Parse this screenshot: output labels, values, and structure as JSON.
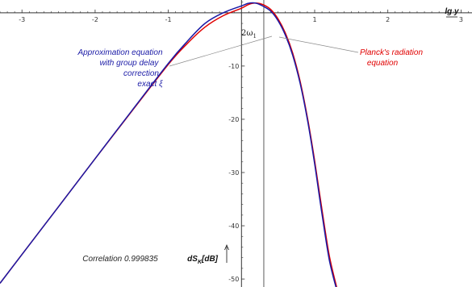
{
  "chart_data": {
    "type": "line",
    "xlabel": "lg y",
    "ylabel": "dS_K[dB]",
    "ylabel_main": "dS",
    "ylabel_sub": "K",
    "ylabel_suffix": "[dB]",
    "xlim": [
      -3.3,
      3.15
    ],
    "ylim": [
      -51.5,
      2.4
    ],
    "xticks": [
      -3,
      -2,
      -1,
      1,
      2,
      3
    ],
    "yticks": [
      -10,
      -20,
      -30,
      -40,
      -50
    ],
    "grid": false,
    "peak_marker": {
      "label_main": "2ω",
      "label_sub": "1",
      "x": 0.305
    },
    "annotations": [
      {
        "lines": [
          "Approximation equation",
          "with group delay",
          "correction",
          "exact ξ"
        ],
        "color": "#1a1aa6"
      },
      {
        "lines": [
          "Planck's radiation",
          "equation"
        ],
        "color": "#e00000"
      }
    ],
    "correlation_text": "Correlation 0.999835",
    "series": [
      {
        "color": "#e00000",
        "x": [
          -3.3,
          -3.0,
          -2.5,
          -2.0,
          -1.5,
          -1.0,
          -0.75,
          -0.5,
          -0.25,
          0.0,
          0.1,
          0.2,
          0.3,
          0.4,
          0.5,
          0.6,
          0.7,
          0.8,
          0.9,
          1.0,
          1.1,
          1.2,
          1.3
        ],
        "y": [
          -50.8,
          -45.4,
          -36.4,
          -27.4,
          -18.5,
          -9.7,
          -5.9,
          -2.7,
          -0.55,
          0.86,
          1.58,
          1.84,
          1.5,
          0.62,
          -1.16,
          -3.82,
          -7.6,
          -12.8,
          -19.6,
          -27.8,
          -37.0,
          -45.6,
          -51.5
        ]
      },
      {
        "color": "#1a1aa6",
        "x": [
          -3.3,
          -3.0,
          -2.5,
          -2.0,
          -1.5,
          -1.0,
          -0.75,
          -0.5,
          -0.25,
          0.0,
          0.1,
          0.2,
          0.3,
          0.4,
          0.5,
          0.6,
          0.7,
          0.8,
          0.9,
          1.0,
          1.1,
          1.2,
          1.3
        ],
        "y": [
          -50.8,
          -45.4,
          -36.4,
          -27.4,
          -18.4,
          -9.5,
          -5.5,
          -2.0,
          0.0,
          1.3,
          1.8,
          1.8,
          1.2,
          0.3,
          -1.5,
          -4.2,
          -8.0,
          -13.2,
          -20.0,
          -28.4,
          -37.8,
          -46.4,
          -52.0
        ]
      }
    ]
  },
  "colors": {
    "axis": "#333333",
    "pointer": "#8a8a8a"
  }
}
